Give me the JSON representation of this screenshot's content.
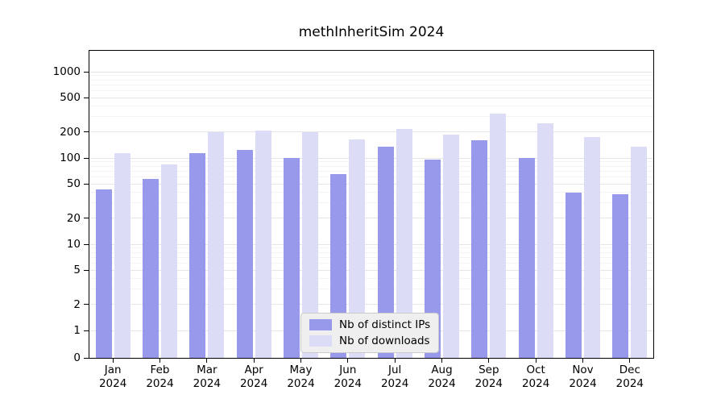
{
  "chart_data": {
    "type": "bar",
    "title": "methInheritSim 2024",
    "categories": [
      "Jan",
      "Feb",
      "Mar",
      "Apr",
      "May",
      "Jun",
      "Jul",
      "Aug",
      "Sep",
      "Oct",
      "Nov",
      "Dec"
    ],
    "x_year_label": "2024",
    "series": [
      {
        "key": "distinct-ips",
        "name": "Nb of distinct IPs",
        "color": "#9999ec",
        "values": [
          43,
          57,
          115,
          125,
          100,
          65,
          135,
          95,
          160,
          100,
          40,
          38
        ]
      },
      {
        "key": "downloads",
        "name": "Nb of downloads",
        "color": "#dcdcf6",
        "values": [
          115,
          85,
          200,
          210,
          200,
          165,
          215,
          185,
          330,
          250,
          175,
          135
        ]
      }
    ],
    "y_ticks": [
      1000,
      500,
      200,
      100,
      50,
      20,
      10,
      5,
      2,
      1,
      0
    ],
    "ylim": [
      0,
      1000
    ],
    "yscale": "log (0 pinned at baseline)",
    "grid": true,
    "legend_position": "bottom-center"
  },
  "colors": {
    "axis": "#000000",
    "grid_major": "#e6e6e6",
    "grid_minor": "#f3f3f3",
    "background": "#ffffff",
    "legend_bg": "#efefef",
    "legend_border": "#cccccc"
  }
}
